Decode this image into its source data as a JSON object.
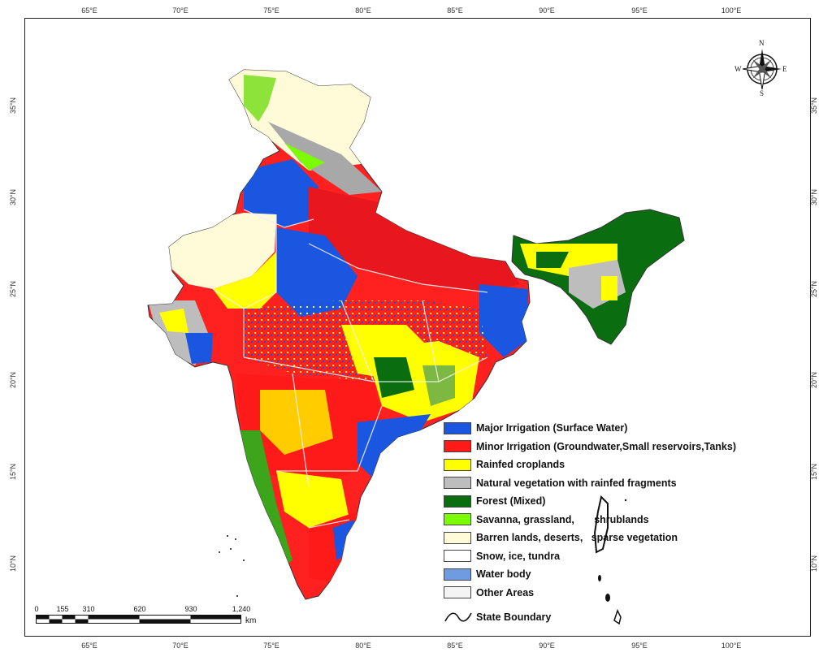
{
  "map": {
    "top_ticks": [
      "65°E",
      "70°E",
      "75°E",
      "80°E",
      "85°E",
      "90°E",
      "95°E",
      "100°E"
    ],
    "bottom_ticks": [
      "65°E",
      "70°E",
      "75°E",
      "80°E",
      "85°E",
      "90°E",
      "95°E",
      "100°E"
    ],
    "left_ticks": [
      "35°N",
      "30°N",
      "25°N",
      "20°N",
      "15°N",
      "10°N"
    ],
    "right_ticks": [
      "35°N",
      "30°N",
      "25°N",
      "20°N",
      "15°N",
      "10°N"
    ],
    "compass": {
      "n": "N",
      "s": "S",
      "e": "E",
      "w": "W"
    },
    "scale": {
      "labels": [
        "0",
        "155",
        "310",
        "620",
        "930",
        "1,240"
      ],
      "unit": "km"
    },
    "legend": [
      {
        "label": "Major Irrigation (Surface Water)",
        "color": "#1a56e0"
      },
      {
        "label": "Minor Irrigation (Groundwater,Small reservoirs,Tanks)",
        "color": "#ff1a1a"
      },
      {
        "label": "Rainfed croplands",
        "color": "#ffff00"
      },
      {
        "label": "Natural vegetation with rainfed fragments",
        "color": "#bdbdbd"
      },
      {
        "label": "Forest (Mixed)",
        "color": "#0a6e10"
      },
      {
        "label": "Savanna, grassland,       shrublands",
        "color": "#7cfc00"
      },
      {
        "label": "Barren lands, deserts,   sparse vegetation",
        "color": "#fffbd9"
      },
      {
        "label": "Snow, ice, tundra",
        "color": "#ffffff"
      },
      {
        "label": "Water body",
        "color": "#6f9be0"
      },
      {
        "label": "Other Areas",
        "color": "#f4f4f4"
      }
    ],
    "state_boundary_label": "State Boundary"
  }
}
